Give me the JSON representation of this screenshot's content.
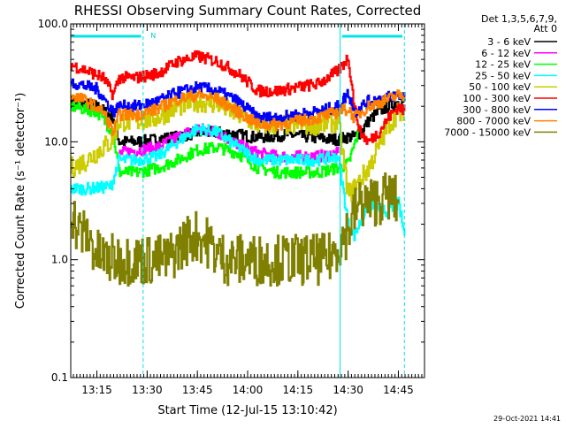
{
  "chart_data": {
    "type": "line",
    "title": "RHESSI Observing Summary Count Rates, Corrected",
    "xlabel": "Start Time (12-Jul-15 13:10:42)",
    "ylabel": "Corrected Count Rate (s⁻¹ detector⁻¹)",
    "y_scale": "log",
    "ylim": [
      0.1,
      100.0
    ],
    "xlim_minutes": [
      13.12,
      14.88
    ],
    "x_ticks": [
      "13:15",
      "13:30",
      "13:45",
      "14:00",
      "14:15",
      "14:30",
      "14:45"
    ],
    "x_tick_values": [
      13.25,
      13.5,
      13.75,
      14.0,
      14.25,
      14.5,
      14.75
    ],
    "y_ticks": [
      "100.0",
      "10.0",
      "1.0",
      "0.1"
    ],
    "y_tick_values": [
      100,
      10,
      1,
      0.1
    ],
    "legend_header": [
      "Det 1,3,5,6,7,9,",
      "Att 0"
    ],
    "legend_position": "right",
    "footer_date": "29-Oct-2021 14:41",
    "night_marker": "N",
    "series": [
      {
        "name": "3 - 6 keV",
        "color": "#000000",
        "x": [
          13.12,
          13.25,
          13.33,
          13.36,
          13.45,
          13.55,
          13.65,
          13.75,
          13.85,
          13.95,
          14.02,
          14.1,
          14.2,
          14.3,
          14.4,
          14.45,
          14.5,
          14.53,
          14.56,
          14.6,
          14.65,
          14.7,
          14.75,
          14.78
        ],
        "y": [
          22,
          20,
          16,
          10,
          10,
          10.5,
          11,
          12,
          12,
          11.5,
          11,
          11,
          11.5,
          11,
          10.5,
          10.5,
          11,
          11,
          12,
          15,
          18,
          20,
          22,
          22
        ]
      },
      {
        "name": "6 - 12 keV",
        "color": "#ff00ff",
        "x": [
          13.36,
          13.45,
          13.55,
          13.65,
          13.75,
          13.85,
          13.95,
          14.05,
          14.15,
          14.25,
          14.35,
          14.45
        ],
        "y": [
          8,
          8.5,
          9,
          11,
          13,
          12,
          9.5,
          8,
          7.5,
          7.5,
          7.5,
          8
        ]
      },
      {
        "name": "12 - 25 keV",
        "color": "#00ff00",
        "x": [
          13.12,
          13.25,
          13.33,
          13.36,
          13.45,
          13.55,
          13.65,
          13.75,
          13.85,
          13.95,
          14.05,
          14.15,
          14.25,
          14.35,
          14.45,
          14.5,
          14.55
        ],
        "y": [
          20,
          18,
          12,
          5.5,
          5.5,
          6,
          7,
          8.5,
          9,
          8,
          6,
          5.5,
          5.5,
          5.5,
          6,
          6.5,
          12
        ]
      },
      {
        "name": "25 - 50 keV",
        "color": "#00ffff",
        "x": [
          13.12,
          13.2,
          13.28,
          13.32,
          13.36,
          13.45,
          13.55,
          13.65,
          13.75,
          13.85,
          13.95,
          14.05,
          14.15,
          14.25,
          14.35,
          14.45,
          14.5,
          14.53,
          14.6,
          14.7,
          14.75,
          14.78
        ],
        "y": [
          4.0,
          4.0,
          4.1,
          4.2,
          7,
          7,
          7.5,
          10,
          13,
          12,
          9,
          7,
          7,
          7,
          7,
          7.5,
          2.0,
          1.6,
          3.0,
          2.5,
          3.0,
          1.6
        ]
      },
      {
        "name": "50 - 100 keV",
        "color": "#cccc00",
        "x": [
          13.12,
          13.2,
          13.28,
          13.32,
          13.36,
          13.45,
          13.55,
          13.65,
          13.75,
          13.85,
          13.95,
          14.05,
          14.15,
          14.25,
          14.35,
          14.45,
          14.5,
          14.55,
          14.6,
          14.65,
          14.7,
          14.75,
          14.78
        ],
        "y": [
          6,
          7,
          9,
          10,
          15,
          15,
          16,
          20,
          22,
          21,
          17,
          14,
          14,
          14,
          14,
          15,
          3.5,
          4.5,
          6,
          9,
          14,
          18,
          15
        ]
      },
      {
        "name": "100 - 300 keV",
        "color": "#ff0000",
        "x": [
          13.12,
          13.2,
          13.28,
          13.33,
          13.36,
          13.45,
          13.55,
          13.65,
          13.75,
          13.85,
          13.95,
          14.05,
          14.15,
          14.25,
          14.35,
          14.45,
          14.5,
          14.53,
          14.56,
          14.6,
          14.65,
          14.7,
          14.75,
          14.78
        ],
        "y": [
          45,
          40,
          35,
          25,
          35,
          35,
          38,
          48,
          53,
          48,
          38,
          27,
          27,
          29,
          31,
          40,
          52,
          20,
          12,
          10,
          12,
          16,
          20,
          18
        ]
      },
      {
        "name": "300 - 800 keV",
        "color": "#0000ff",
        "x": [
          13.12,
          13.25,
          13.33,
          13.36,
          13.45,
          13.55,
          13.65,
          13.75,
          13.85,
          13.95,
          14.05,
          14.15,
          14.25,
          14.35,
          14.45,
          14.5,
          14.53,
          14.6,
          14.7,
          14.75,
          14.78
        ],
        "y": [
          32,
          28,
          18,
          20,
          20,
          22,
          26,
          29,
          27,
          22,
          16,
          16,
          17,
          18,
          20,
          26,
          18,
          22,
          24,
          25,
          24
        ]
      },
      {
        "name": "800 - 7000 keV",
        "color": "#ff8000",
        "x": [
          13.12,
          13.2,
          13.28,
          13.33,
          13.36,
          13.45,
          13.55,
          13.65,
          13.75,
          13.85,
          13.95,
          14.05,
          14.15,
          14.25,
          14.35,
          14.45,
          14.5,
          14.53,
          14.6,
          14.7,
          14.75,
          14.78
        ],
        "y": [
          25,
          22,
          18,
          12,
          17,
          17,
          19,
          23,
          25,
          23,
          18,
          14,
          14,
          15,
          16,
          18,
          19,
          16,
          20,
          23,
          25,
          24
        ]
      },
      {
        "name": "7000 - 15000 keV",
        "color": "#808000",
        "x": [
          13.12,
          13.15,
          13.2,
          13.25,
          13.3,
          13.4,
          13.5,
          13.6,
          13.7,
          13.75,
          13.8,
          13.85,
          13.9,
          14.0,
          14.1,
          14.2,
          14.3,
          14.4,
          14.5,
          14.53,
          14.56,
          14.6,
          14.7,
          14.75
        ],
        "y": [
          2.8,
          1.8,
          1.6,
          1.1,
          1.0,
          1.0,
          1.0,
          1.0,
          1.5,
          1.6,
          1.4,
          1.1,
          1.0,
          1.0,
          1.0,
          1.0,
          1.0,
          1.0,
          1.8,
          2.5,
          3.0,
          3.0,
          3.5,
          3.0
        ]
      }
    ]
  }
}
